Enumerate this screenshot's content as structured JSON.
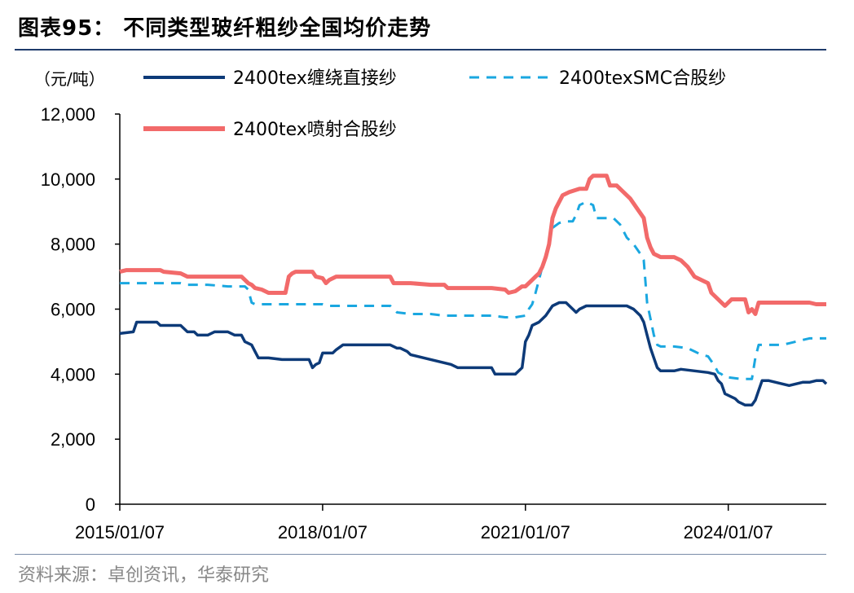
{
  "header": {
    "title": "图表95：  不同类型玻纤粗纱全国均价走势"
  },
  "footer": {
    "source": "资料来源：卓创资讯，华泰研究"
  },
  "chart_data": {
    "type": "line",
    "unit_label": "（元/吨）",
    "ylim": [
      0,
      12000
    ],
    "yticks": [
      0,
      2000,
      4000,
      6000,
      8000,
      10000,
      12000
    ],
    "ytick_labels": [
      "0",
      "2,000",
      "4,000",
      "6,000",
      "8,000",
      "10,000",
      "12,000"
    ],
    "xlim": [
      2015.0,
      2025.45
    ],
    "xticks": [
      2015.0,
      2018.0,
      2021.0,
      2024.0
    ],
    "xtick_labels": [
      "2015/01/07",
      "2018/01/07",
      "2021/01/07",
      "2024/01/07"
    ],
    "legend_position": "top",
    "series": [
      {
        "name": "2400tex缠绕直接纱",
        "color": "#0d3a78",
        "style": "solid",
        "points": [
          [
            2015.0,
            5250
          ],
          [
            2015.2,
            5300
          ],
          [
            2015.25,
            5600
          ],
          [
            2015.55,
            5600
          ],
          [
            2015.6,
            5500
          ],
          [
            2015.9,
            5500
          ],
          [
            2016.0,
            5300
          ],
          [
            2016.1,
            5300
          ],
          [
            2016.15,
            5200
          ],
          [
            2016.3,
            5200
          ],
          [
            2016.4,
            5300
          ],
          [
            2016.6,
            5300
          ],
          [
            2016.7,
            5200
          ],
          [
            2016.8,
            5200
          ],
          [
            2016.85,
            5000
          ],
          [
            2016.95,
            4900
          ],
          [
            2017.0,
            4700
          ],
          [
            2017.05,
            4500
          ],
          [
            2017.2,
            4500
          ],
          [
            2017.4,
            4450
          ],
          [
            2017.8,
            4450
          ],
          [
            2017.85,
            4200
          ],
          [
            2017.9,
            4300
          ],
          [
            2017.95,
            4350
          ],
          [
            2018.0,
            4650
          ],
          [
            2018.15,
            4650
          ],
          [
            2018.2,
            4750
          ],
          [
            2018.3,
            4900
          ],
          [
            2018.9,
            4900
          ],
          [
            2019.0,
            4900
          ],
          [
            2019.1,
            4800
          ],
          [
            2019.15,
            4800
          ],
          [
            2019.25,
            4700
          ],
          [
            2019.3,
            4600
          ],
          [
            2019.5,
            4500
          ],
          [
            2019.7,
            4400
          ],
          [
            2019.9,
            4300
          ],
          [
            2020.0,
            4200
          ],
          [
            2020.5,
            4200
          ],
          [
            2020.55,
            4000
          ],
          [
            2020.8,
            4000
          ],
          [
            2020.85,
            4000
          ],
          [
            2020.95,
            4200
          ],
          [
            2020.97,
            4500
          ],
          [
            2021.0,
            5000
          ],
          [
            2021.05,
            5200
          ],
          [
            2021.1,
            5500
          ],
          [
            2021.2,
            5600
          ],
          [
            2021.3,
            5800
          ],
          [
            2021.4,
            6100
          ],
          [
            2021.5,
            6200
          ],
          [
            2021.6,
            6200
          ],
          [
            2021.7,
            6000
          ],
          [
            2021.75,
            5900
          ],
          [
            2021.8,
            6000
          ],
          [
            2021.9,
            6100
          ],
          [
            2022.0,
            6100
          ],
          [
            2022.5,
            6100
          ],
          [
            2022.6,
            6000
          ],
          [
            2022.7,
            5800
          ],
          [
            2022.75,
            5600
          ],
          [
            2022.8,
            5200
          ],
          [
            2022.85,
            4800
          ],
          [
            2022.9,
            4500
          ],
          [
            2022.95,
            4200
          ],
          [
            2023.0,
            4100
          ],
          [
            2023.2,
            4100
          ],
          [
            2023.3,
            4150
          ],
          [
            2023.5,
            4100
          ],
          [
            2023.7,
            4050
          ],
          [
            2023.8,
            4000
          ],
          [
            2023.85,
            3800
          ],
          [
            2023.9,
            3700
          ],
          [
            2023.95,
            3400
          ],
          [
            2024.05,
            3300
          ],
          [
            2024.1,
            3250
          ],
          [
            2024.15,
            3150
          ],
          [
            2024.2,
            3100
          ],
          [
            2024.25,
            3050
          ],
          [
            2024.35,
            3050
          ],
          [
            2024.4,
            3200
          ],
          [
            2024.45,
            3500
          ],
          [
            2024.5,
            3800
          ],
          [
            2024.6,
            3800
          ],
          [
            2024.7,
            3750
          ],
          [
            2024.8,
            3700
          ],
          [
            2024.9,
            3650
          ],
          [
            2025.0,
            3700
          ],
          [
            2025.1,
            3750
          ],
          [
            2025.2,
            3750
          ],
          [
            2025.3,
            3800
          ],
          [
            2025.4,
            3800
          ],
          [
            2025.45,
            3700
          ]
        ]
      },
      {
        "name": "2400texSMC合股纱",
        "color": "#1aa7e0",
        "style": "dashed",
        "points": [
          [
            2015.0,
            6800
          ],
          [
            2015.5,
            6800
          ],
          [
            2015.9,
            6800
          ],
          [
            2016.0,
            6750
          ],
          [
            2016.3,
            6750
          ],
          [
            2016.6,
            6700
          ],
          [
            2016.85,
            6700
          ],
          [
            2016.9,
            6600
          ],
          [
            2016.95,
            6200
          ],
          [
            2017.0,
            6150
          ],
          [
            2017.5,
            6150
          ],
          [
            2018.0,
            6150
          ],
          [
            2018.1,
            6100
          ],
          [
            2018.5,
            6100
          ],
          [
            2018.9,
            6100
          ],
          [
            2019.0,
            6100
          ],
          [
            2019.1,
            5900
          ],
          [
            2019.3,
            5850
          ],
          [
            2019.6,
            5850
          ],
          [
            2019.8,
            5800
          ],
          [
            2020.0,
            5800
          ],
          [
            2020.5,
            5800
          ],
          [
            2020.7,
            5750
          ],
          [
            2020.85,
            5750
          ],
          [
            2021.0,
            5800
          ],
          [
            2021.05,
            6000
          ],
          [
            2021.1,
            6150
          ],
          [
            2021.15,
            6500
          ],
          [
            2021.2,
            6900
          ],
          [
            2021.25,
            7300
          ],
          [
            2021.3,
            7600
          ],
          [
            2021.35,
            8100
          ],
          [
            2021.4,
            8500
          ],
          [
            2021.5,
            8650
          ],
          [
            2021.6,
            8700
          ],
          [
            2021.7,
            8700
          ],
          [
            2021.75,
            8900
          ],
          [
            2021.8,
            9200
          ],
          [
            2021.9,
            9300
          ],
          [
            2022.0,
            9200
          ],
          [
            2022.05,
            8800
          ],
          [
            2022.1,
            8800
          ],
          [
            2022.3,
            8800
          ],
          [
            2022.4,
            8600
          ],
          [
            2022.5,
            8200
          ],
          [
            2022.6,
            8000
          ],
          [
            2022.7,
            7700
          ],
          [
            2022.75,
            7500
          ],
          [
            2022.8,
            6200
          ],
          [
            2022.85,
            5700
          ],
          [
            2022.9,
            5200
          ],
          [
            2022.95,
            4900
          ],
          [
            2023.0,
            4850
          ],
          [
            2023.2,
            4850
          ],
          [
            2023.4,
            4800
          ],
          [
            2023.5,
            4700
          ],
          [
            2023.6,
            4600
          ],
          [
            2023.7,
            4550
          ],
          [
            2023.75,
            4400
          ],
          [
            2023.8,
            4250
          ],
          [
            2023.85,
            4050
          ],
          [
            2023.9,
            4000
          ],
          [
            2023.95,
            3900
          ],
          [
            2024.0,
            3900
          ],
          [
            2024.2,
            3850
          ],
          [
            2024.35,
            3850
          ],
          [
            2024.4,
            4500
          ],
          [
            2024.45,
            4900
          ],
          [
            2024.6,
            4900
          ],
          [
            2024.8,
            4900
          ],
          [
            2024.9,
            4950
          ],
          [
            2025.0,
            5000
          ],
          [
            2025.1,
            5050
          ],
          [
            2025.2,
            5100
          ],
          [
            2025.45,
            5100
          ]
        ]
      },
      {
        "name": "2400tex喷射合股纱",
        "color": "#f26a6a",
        "style": "solid",
        "points": [
          [
            2015.0,
            7150
          ],
          [
            2015.1,
            7200
          ],
          [
            2015.6,
            7200
          ],
          [
            2015.65,
            7150
          ],
          [
            2015.9,
            7100
          ],
          [
            2016.0,
            7000
          ],
          [
            2016.5,
            7000
          ],
          [
            2016.8,
            7000
          ],
          [
            2016.85,
            6900
          ],
          [
            2016.9,
            6800
          ],
          [
            2016.95,
            6750
          ],
          [
            2017.0,
            6650
          ],
          [
            2017.1,
            6600
          ],
          [
            2017.2,
            6500
          ],
          [
            2017.4,
            6500
          ],
          [
            2017.45,
            6500
          ],
          [
            2017.5,
            7000
          ],
          [
            2017.55,
            7100
          ],
          [
            2017.6,
            7150
          ],
          [
            2017.85,
            7150
          ],
          [
            2017.9,
            7000
          ],
          [
            2018.0,
            6950
          ],
          [
            2018.05,
            6800
          ],
          [
            2018.1,
            6900
          ],
          [
            2018.2,
            7000
          ],
          [
            2018.5,
            7000
          ],
          [
            2019.0,
            7000
          ],
          [
            2019.05,
            6800
          ],
          [
            2019.3,
            6800
          ],
          [
            2019.6,
            6750
          ],
          [
            2019.8,
            6750
          ],
          [
            2019.85,
            6650
          ],
          [
            2020.0,
            6650
          ],
          [
            2020.5,
            6650
          ],
          [
            2020.7,
            6600
          ],
          [
            2020.75,
            6500
          ],
          [
            2020.85,
            6550
          ],
          [
            2020.95,
            6700
          ],
          [
            2021.0,
            6700
          ],
          [
            2021.1,
            6900
          ],
          [
            2021.15,
            7000
          ],
          [
            2021.2,
            7100
          ],
          [
            2021.25,
            7300
          ],
          [
            2021.3,
            7600
          ],
          [
            2021.35,
            8000
          ],
          [
            2021.4,
            8800
          ],
          [
            2021.45,
            9100
          ],
          [
            2021.55,
            9500
          ],
          [
            2021.65,
            9600
          ],
          [
            2021.8,
            9700
          ],
          [
            2021.9,
            9700
          ],
          [
            2021.95,
            10000
          ],
          [
            2022.0,
            10100
          ],
          [
            2022.2,
            10100
          ],
          [
            2022.25,
            9800
          ],
          [
            2022.35,
            9800
          ],
          [
            2022.45,
            9600
          ],
          [
            2022.55,
            9400
          ],
          [
            2022.65,
            9100
          ],
          [
            2022.75,
            8800
          ],
          [
            2022.8,
            8200
          ],
          [
            2022.85,
            7900
          ],
          [
            2022.9,
            7700
          ],
          [
            2023.0,
            7600
          ],
          [
            2023.2,
            7600
          ],
          [
            2023.3,
            7500
          ],
          [
            2023.4,
            7300
          ],
          [
            2023.5,
            7000
          ],
          [
            2023.6,
            6900
          ],
          [
            2023.7,
            6800
          ],
          [
            2023.75,
            6500
          ],
          [
            2023.85,
            6300
          ],
          [
            2023.9,
            6200
          ],
          [
            2023.95,
            6100
          ],
          [
            2024.0,
            6200
          ],
          [
            2024.05,
            6300
          ],
          [
            2024.25,
            6300
          ],
          [
            2024.3,
            5900
          ],
          [
            2024.35,
            6000
          ],
          [
            2024.4,
            5850
          ],
          [
            2024.45,
            6200
          ],
          [
            2024.6,
            6200
          ],
          [
            2025.0,
            6200
          ],
          [
            2025.2,
            6200
          ],
          [
            2025.3,
            6150
          ],
          [
            2025.45,
            6150
          ]
        ]
      }
    ]
  }
}
